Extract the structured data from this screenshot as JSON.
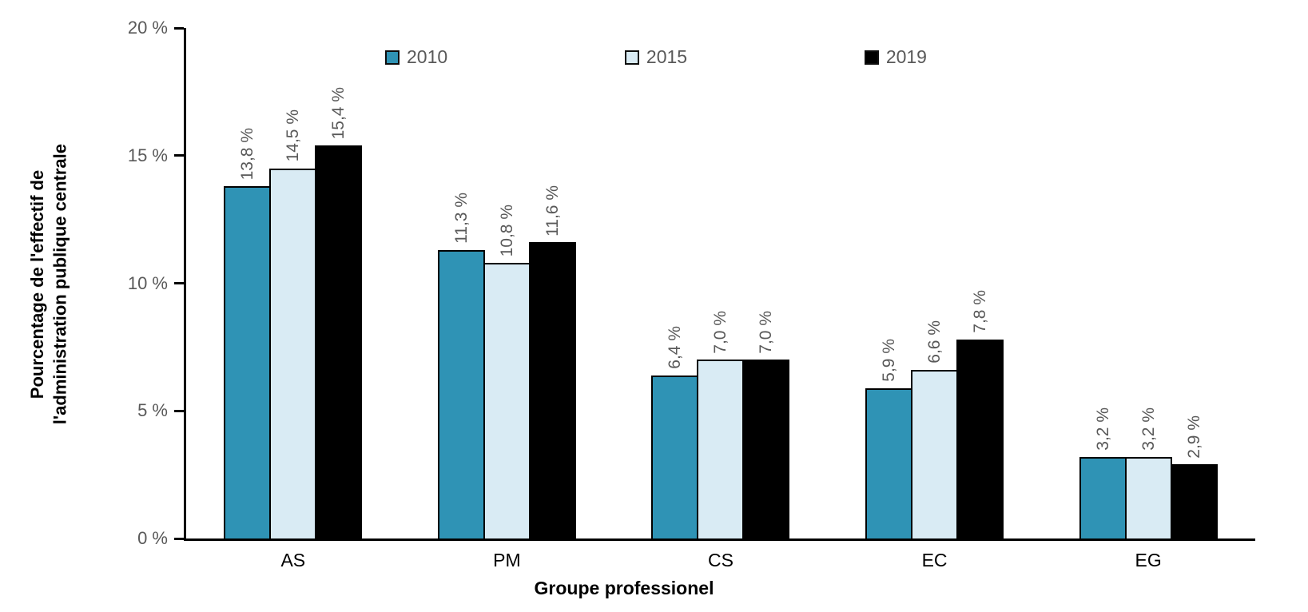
{
  "chart_data": {
    "type": "bar",
    "title": "",
    "categories": [
      "AS",
      "PM",
      "CS",
      "EC",
      "EG"
    ],
    "series": [
      {
        "name": "2010",
        "color": "#2F93B5",
        "values": [
          13.8,
          11.3,
          6.4,
          5.9,
          3.2
        ],
        "value_labels": [
          "13,8 %",
          "11,3 %",
          "6,4 %",
          "5,9 %",
          "3,2 %"
        ]
      },
      {
        "name": "2015",
        "color": "#D9EBF4",
        "values": [
          14.5,
          10.8,
          7.0,
          6.6,
          3.2
        ],
        "value_labels": [
          "14,5 %",
          "10,8 %",
          "7,0 %",
          "6,6 %",
          "3,2 %"
        ]
      },
      {
        "name": "2019",
        "color": "#000000",
        "values": [
          15.4,
          11.6,
          7.0,
          7.8,
          2.9
        ],
        "value_labels": [
          "15,4 %",
          "11,6 %",
          "7,0 %",
          "7,8 %",
          "2,9 %"
        ]
      }
    ],
    "xlabel": "Groupe professionel",
    "ylabel": "Pourcentage de l'effectif de l'administration publique centrale",
    "ylabel_display": "Pourcentage de l'effectif de\nl'administration publique centrale",
    "y_ticks": [
      "20 %",
      "15 %",
      "10 %",
      "5 %",
      "0 %"
    ],
    "ylim": [
      0,
      20
    ],
    "grid": false,
    "legend_position": "top",
    "value_label_rotation": 90,
    "colors": {
      "axis": "#000000",
      "tick_text": "#595959",
      "value_label_text": "#595959",
      "category_text": "#000000",
      "bar_border": "#000000"
    }
  }
}
